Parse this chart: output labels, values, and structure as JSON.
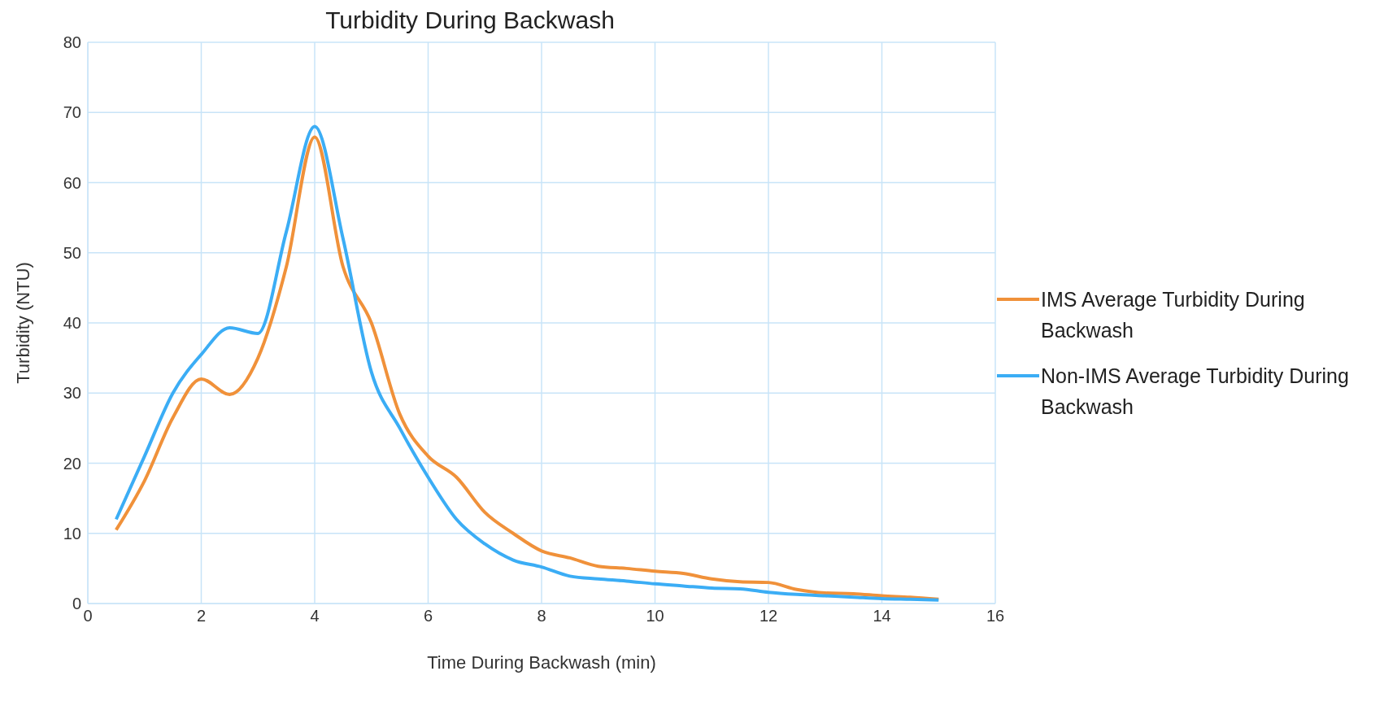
{
  "chart_data": {
    "type": "line",
    "title": "Turbidity During Backwash",
    "xlabel": "Time During Backwash (min)",
    "ylabel": "Turbidity (NTU)",
    "x": [
      0.5,
      1,
      1.5,
      2,
      2.5,
      3,
      3.5,
      4,
      4.5,
      5,
      5.5,
      6,
      6.5,
      7,
      7.5,
      8,
      8.5,
      9,
      9.5,
      10,
      10.5,
      11,
      11.5,
      12,
      12.5,
      13,
      13.5,
      14,
      14.5,
      15
    ],
    "series": [
      {
        "name": "IMS Average Turbidity During Backwash",
        "color": "#f0913a",
        "values": [
          10.5,
          17.5,
          26.5,
          32,
          29.8,
          35,
          48,
          66.5,
          48,
          40,
          27,
          21,
          18,
          13,
          10,
          7.5,
          6.5,
          5.3,
          5,
          4.6,
          4.3,
          3.5,
          3.1,
          3,
          2,
          1.5,
          1.4,
          1.1,
          0.9,
          0.6
        ]
      },
      {
        "name": "Non-IMS Average Turbidity During Backwash",
        "color": "#3badf5",
        "values": [
          12,
          21,
          30,
          35.5,
          39.3,
          38.5,
          53,
          68,
          52,
          33,
          25,
          18,
          12,
          8.5,
          6.2,
          5.2,
          3.9,
          3.5,
          3.2,
          2.8,
          2.5,
          2.2,
          2.1,
          1.6,
          1.3,
          1.1,
          0.9,
          0.7,
          0.6,
          0.5
        ]
      }
    ],
    "xlim": [
      0,
      16
    ],
    "xticks": [
      0,
      2,
      4,
      6,
      8,
      10,
      12,
      14,
      16
    ],
    "ylim": [
      0,
      80
    ],
    "yticks": [
      0,
      10,
      20,
      30,
      40,
      50,
      60,
      70,
      80
    ],
    "grid": true,
    "legend": "right",
    "marker": "none",
    "line_style": "solid"
  }
}
